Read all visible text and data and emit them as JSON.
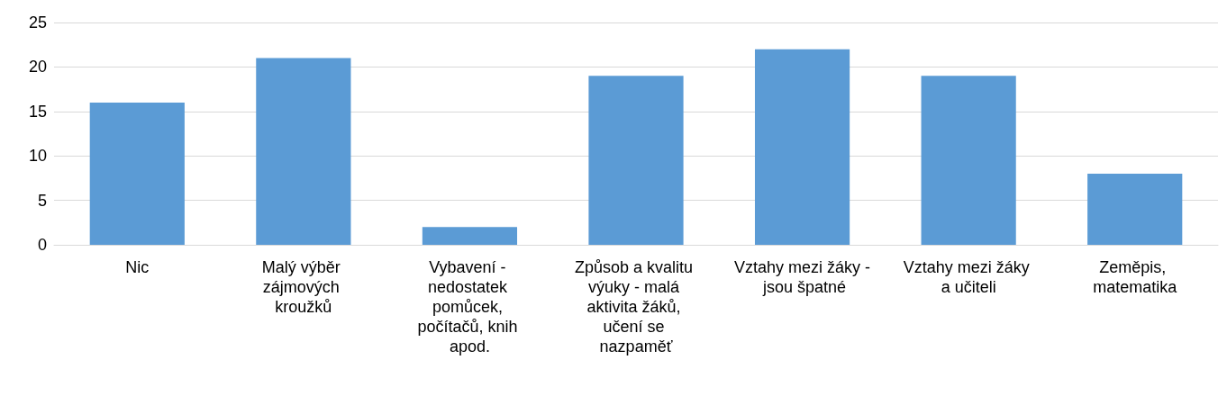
{
  "chart_data": {
    "type": "bar",
    "categories": [
      "Nic",
      "Malý výběr zájmových kroužků",
      "Vybavení - nedostatek pomůcek, počítačů, knih apod.",
      "Způsob a kvalitu výuky - malá aktivita žáků, učení se nazpaměť",
      "Vztahy mezi žáky - jsou špatné",
      "Vztahy mezi žáky a učiteli",
      "Zeměpis, matematika"
    ],
    "values": [
      16,
      21,
      2,
      19,
      22,
      19,
      8
    ],
    "color": "#5b9bd5",
    "ylim": [
      0,
      25
    ],
    "yticks": [
      0,
      5,
      10,
      15,
      20,
      25
    ],
    "grid": "y"
  }
}
